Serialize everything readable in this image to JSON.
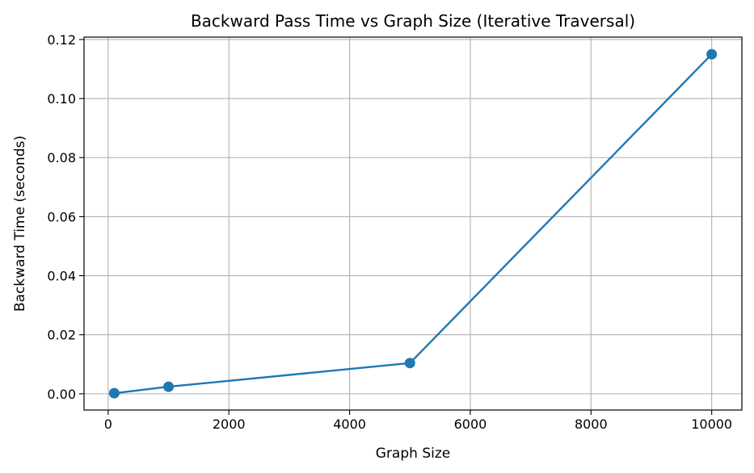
{
  "chart_data": {
    "type": "line",
    "title": "Backward Pass Time vs Graph Size (Iterative Traversal)",
    "xlabel": "Graph Size",
    "ylabel": "Backward Time (seconds)",
    "xlim": [
      -400,
      10500
    ],
    "ylim": [
      -0.0055,
      0.1208
    ],
    "xticks": [
      0,
      2000,
      4000,
      6000,
      8000,
      10000
    ],
    "xtick_labels": [
      "0",
      "2000",
      "4000",
      "6000",
      "8000",
      "10000"
    ],
    "yticks": [
      0.0,
      0.02,
      0.04,
      0.06,
      0.08,
      0.1,
      0.12
    ],
    "ytick_labels": [
      "0.00",
      "0.02",
      "0.04",
      "0.06",
      "0.08",
      "0.10",
      "0.12"
    ],
    "grid": true,
    "series": [
      {
        "color": "#1f77b4",
        "marker": "circle",
        "x": [
          100,
          1000,
          5000,
          10000
        ],
        "y": [
          0.0002,
          0.0024,
          0.0104,
          0.115
        ]
      }
    ]
  }
}
